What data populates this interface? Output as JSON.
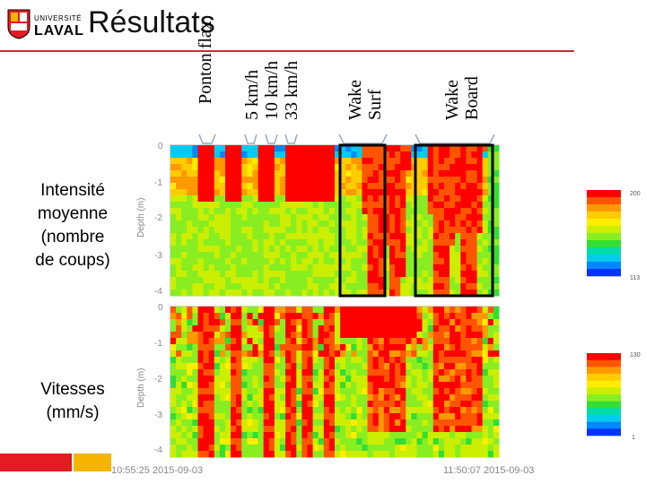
{
  "header": {
    "logo_text_top": "UNIVERSITÉ",
    "logo_text_main": "LAVAL",
    "title": "Résultats"
  },
  "annotations": {
    "ponton": "Ponton flax",
    "speeds": "5 km/h\n10 km/h\n33 km/h",
    "wake_surf": "Wake\nSurf",
    "wake_board": "Wake\nBoard"
  },
  "side_labels": {
    "intensity": "Intensité\nmoyenne\n(nombre\nde coups)",
    "velocity": "Vitesses\n(mm/s)"
  },
  "colors": {
    "accent_red": "#e31b23",
    "accent_yellow": "#f5b400",
    "highlight_box": "#000000"
  },
  "chart_data": [
    {
      "type": "heatmap",
      "title": "Intensité moyenne",
      "ylabel": "Depth (m)",
      "y_ticks": [
        "0",
        "-1",
        "-2",
        "-3",
        "-4"
      ],
      "ylim": [
        -4.3,
        0
      ],
      "colorbar_max": "200",
      "colorbar_min": "113",
      "events": [
        {
          "label": "Ponton flax",
          "x_fraction": 0.19
        },
        {
          "label": "5 km/h",
          "x_fraction": 0.29
        },
        {
          "label": "10 km/h",
          "x_fraction": 0.36
        },
        {
          "label": "33 km/h",
          "x_fraction": 0.41
        },
        {
          "label": "Wake Surf",
          "x_start_fraction": 0.56,
          "x_end_fraction": 0.72
        },
        {
          "label": "Wake Board",
          "x_start_fraction": 0.79,
          "x_end_fraction": 0.98
        }
      ]
    },
    {
      "type": "heatmap",
      "title": "Vitesses",
      "ylabel": "Depth (m)",
      "y_ticks": [
        "0",
        "-1",
        "-2",
        "-3",
        "-4"
      ],
      "ylim": [
        -4.3,
        0
      ],
      "colorbar_max": "130",
      "colorbar_min": "1",
      "x_start_label": "10:55:25  2015-09-03",
      "x_end_label": "11:50:07  2015-09-03"
    }
  ]
}
